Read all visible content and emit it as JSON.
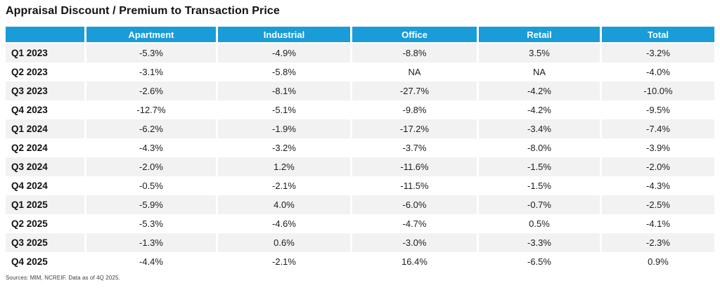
{
  "title": "Appraisal Discount / Premium to Transaction Price",
  "footer": "Sources: MIM, NCREIF. Data as of 4Q 2025.",
  "colors": {
    "header_bg": "#1A9CD8",
    "header_text": "#FFFFFF",
    "row_stripe": "#F2F2F2",
    "row_plain": "#FFFFFF",
    "text": "#1A1A1A"
  },
  "chart_data": {
    "type": "table",
    "columns": [
      "",
      "Apartment",
      "Industrial",
      "Office",
      "Retail",
      "Total"
    ],
    "rows": [
      {
        "label": "Q1 2023",
        "values": [
          "-5.3%",
          "-4.9%",
          "-8.8%",
          "3.5%",
          "-3.2%"
        ]
      },
      {
        "label": "Q2 2023",
        "values": [
          "-3.1%",
          "-5.8%",
          "NA",
          "NA",
          "-4.0%"
        ]
      },
      {
        "label": "Q3 2023",
        "values": [
          "-2.6%",
          "-8.1%",
          "-27.7%",
          "-4.2%",
          "-10.0%"
        ]
      },
      {
        "label": "Q4 2023",
        "values": [
          "-12.7%",
          "-5.1%",
          "-9.8%",
          "-4.2%",
          "-9.5%"
        ]
      },
      {
        "label": "Q1 2024",
        "values": [
          "-6.2%",
          "-1.9%",
          "-17.2%",
          "-3.4%",
          "-7.4%"
        ]
      },
      {
        "label": "Q2 2024",
        "values": [
          "-4.3%",
          "-3.2%",
          "-3.7%",
          "-8.0%",
          "-3.9%"
        ]
      },
      {
        "label": "Q3 2024",
        "values": [
          "-2.0%",
          "1.2%",
          "-11.6%",
          "-1.5%",
          "-2.0%"
        ]
      },
      {
        "label": "Q4 2024",
        "values": [
          "-0.5%",
          "-2.1%",
          "-11.5%",
          "-1.5%",
          "-4.3%"
        ]
      },
      {
        "label": "Q1 2025",
        "values": [
          "-5.9%",
          "4.0%",
          "-6.0%",
          "-0.7%",
          "-2.5%"
        ]
      },
      {
        "label": "Q2 2025",
        "values": [
          "-5.3%",
          "-4.6%",
          "-4.7%",
          "0.5%",
          "-4.1%"
        ]
      },
      {
        "label": "Q3 2025",
        "values": [
          "-1.3%",
          "0.6%",
          "-3.0%",
          "-3.3%",
          "-2.3%"
        ]
      },
      {
        "label": "Q4 2025",
        "values": [
          "-4.4%",
          "-2.1%",
          "16.4%",
          "-6.5%",
          "0.9%"
        ]
      }
    ]
  }
}
